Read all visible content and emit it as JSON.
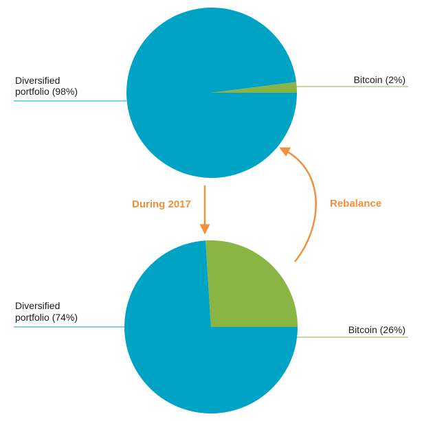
{
  "colors": {
    "diversified": "#00a3c4",
    "bitcoin": "#8ab545",
    "arrow": "#f0903a",
    "text": "#1a1a1a"
  },
  "chart_data": [
    {
      "type": "pie",
      "slices": [
        {
          "label_line1": "Diversified",
          "label_line2": "portfolio (98%)",
          "value": 98,
          "color": "#00a3c4"
        },
        {
          "label_line1": "Bitcoin (2%)",
          "value": 2,
          "color": "#8ab545"
        }
      ]
    },
    {
      "type": "pie",
      "slices": [
        {
          "label_line1": "Diversified",
          "label_line2": "portfolio (74%)",
          "value": 74,
          "color": "#00a3c4"
        },
        {
          "label_line1": "Bitcoin (26%)",
          "value": 26,
          "color": "#8ab545"
        }
      ]
    }
  ],
  "annotations": {
    "during": "During 2017",
    "rebalance": "Rebalance"
  }
}
